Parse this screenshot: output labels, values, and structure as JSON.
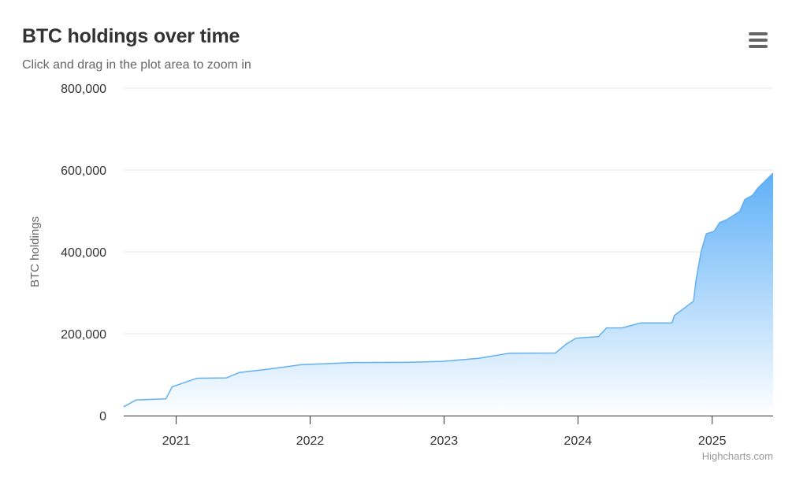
{
  "header": {
    "title": "BTC holdings over time",
    "subtitle": "Click and drag in the plot area to zoom in",
    "menu_icon": "hamburger-menu-icon"
  },
  "credits": "Highcharts.com",
  "colors": {
    "line": "#62b0ef",
    "fill_top": "#5fb0f7",
    "fill_bottom": "#ffffff",
    "grid": "#e6e6e6",
    "axis": "#333333"
  },
  "chart_data": {
    "type": "area",
    "title": "BTC holdings over time",
    "subtitle": "Click and drag in the plot area to zoom in",
    "ylabel": "BTC holdings",
    "xlabel": "",
    "xlim": [
      "2020-08-11",
      "2025-06-16"
    ],
    "ylim": [
      0,
      800000
    ],
    "x_ticks": [
      "2021",
      "2022",
      "2023",
      "2024",
      "2025"
    ],
    "y_ticks": [
      "0",
      "200,000",
      "400,000",
      "600,000",
      "800,000"
    ],
    "y_tick_values": [
      0,
      200000,
      400000,
      600000,
      800000
    ],
    "grid": true,
    "legend": "none",
    "x": [
      "2020-08-11",
      "2020-09-14",
      "2020-12-04",
      "2020-12-21",
      "2021-02-24",
      "2021-03-01",
      "2021-05-18",
      "2021-06-21",
      "2021-09-13",
      "2021-12-09",
      "2022-05-01",
      "2022-09-20",
      "2022-12-27",
      "2023-04-05",
      "2023-06-28",
      "2023-11-01",
      "2023-11-30",
      "2023-12-27",
      "2024-02-26",
      "2024-03-19",
      "2024-05-01",
      "2024-06-20",
      "2024-09-13",
      "2024-09-20",
      "2024-11-11",
      "2024-11-18",
      "2024-12-02",
      "2024-12-16",
      "2025-01-06",
      "2025-01-21",
      "2025-02-10",
      "2025-03-17",
      "2025-03-31",
      "2025-04-21",
      "2025-05-05",
      "2025-06-02",
      "2025-06-16"
    ],
    "values": [
      21454,
      38250,
      40824,
      70470,
      90531,
      91326,
      92079,
      105085,
      114042,
      124391,
      129699,
      130000,
      132500,
      140000,
      152333,
      152800,
      174530,
      189150,
      193000,
      214246,
      214400,
      226331,
      226500,
      244800,
      279420,
      331200,
      402100,
      444262,
      450000,
      471107,
      478740,
      499096,
      528185,
      538200,
      555450,
      580250,
      592100
    ]
  }
}
